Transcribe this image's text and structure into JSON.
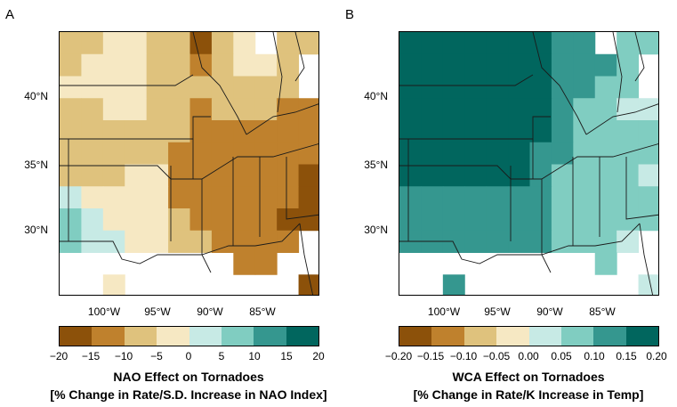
{
  "panels": [
    {
      "id": "A",
      "letter": "A",
      "title_line1": "NAO Effect on Tornadoes",
      "title_line2": "[% Change in Rate/S.D. Increase in NAO Index]",
      "colorbar_ticks": [
        "−20",
        "−15",
        "−10",
        "−5",
        "0",
        "5",
        "10",
        "15",
        "20"
      ]
    },
    {
      "id": "B",
      "letter": "B",
      "title_line1": "WCA  Effect on Tornadoes",
      "title_line2": "[% Change in Rate/K Increase in Temp]",
      "colorbar_ticks": [
        "−0.20",
        "−0.15",
        "−0.10",
        "−0.05",
        "0.00",
        "0.05",
        "0.10",
        "0.15",
        "0.20"
      ]
    }
  ],
  "lat_labels": [
    "40°N",
    "35°N",
    "30°N"
  ],
  "lon_labels": [
    "100°W",
    "95°W",
    "90°W",
    "85°W"
  ],
  "colors": {
    "dark_brown": "#8c510a",
    "brown": "#bf812d",
    "tan": "#dfc27d",
    "light_tan": "#f6e8c3",
    "light_teal": "#c7eae5",
    "teal": "#80cdc1",
    "dark_teal": "#35978f",
    "darkest_teal": "#01665e"
  }
}
